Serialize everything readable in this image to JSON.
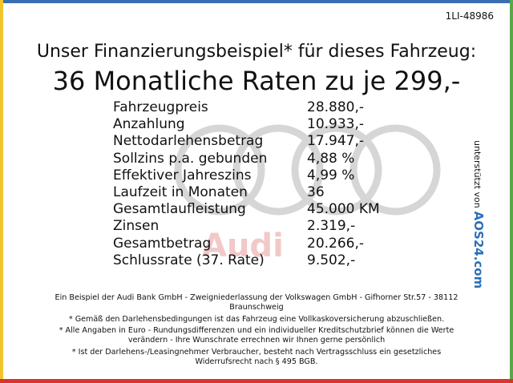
{
  "header": {
    "id": "1LI-48986",
    "title": "Unser Finanzierungsbeispiel* für dieses Fahrzeug:",
    "subtitle": "36 Monatliche Raten zu je 299,-"
  },
  "table": {
    "rows": [
      [
        "Fahrzeugpreis",
        "28.880,-"
      ],
      [
        "Anzahlung",
        "10.933,-"
      ],
      [
        "Nettodarlehensbetrag",
        "17.947,-"
      ],
      [
        "Sollzins p.a. gebunden",
        "4,88 %"
      ],
      [
        "Effektiver Jahreszins",
        "4,99 %"
      ],
      [
        "Laufzeit in Monaten",
        "36"
      ],
      [
        "Gesamtlaufleistung",
        "45.000 KM"
      ],
      [
        "Zinsen",
        "2.319,-"
      ],
      [
        "Gesamtbetrag",
        "20.266,-"
      ],
      [
        "Schlussrate (37. Rate)",
        "9.502,-"
      ]
    ]
  },
  "watermark": "Audi",
  "sponsor": {
    "text": "unterstützt von",
    "logo": "AOS24.com"
  },
  "footer": {
    "notes": [
      [
        "Ein Beispiel der Audi Bank GmbH - Zweigniederlassung der Volkswagen GmbH - Gifhorner Str.57 - 38112",
        "Braunschweig"
      ],
      [
        "* Gemäß den Darlehensbedingungen ist das Fahrzeug eine Vollkaskoversicherung abzuschließen."
      ],
      [
        "* Alle Angaben in Euro - Rundungsdifferenzen und ein individueller Kreditschutzbrief können die Werte",
        "verändern - Ihre Wunschrate errechnen wir Ihnen gerne persönlich"
      ],
      [
        "* Ist der Darlehens-/Leasingnehmer Verbraucher, besteht nach Vertragsschluss ein gesetzliches",
        "Widerrufsrecht nach § 495 BGB."
      ]
    ]
  }
}
